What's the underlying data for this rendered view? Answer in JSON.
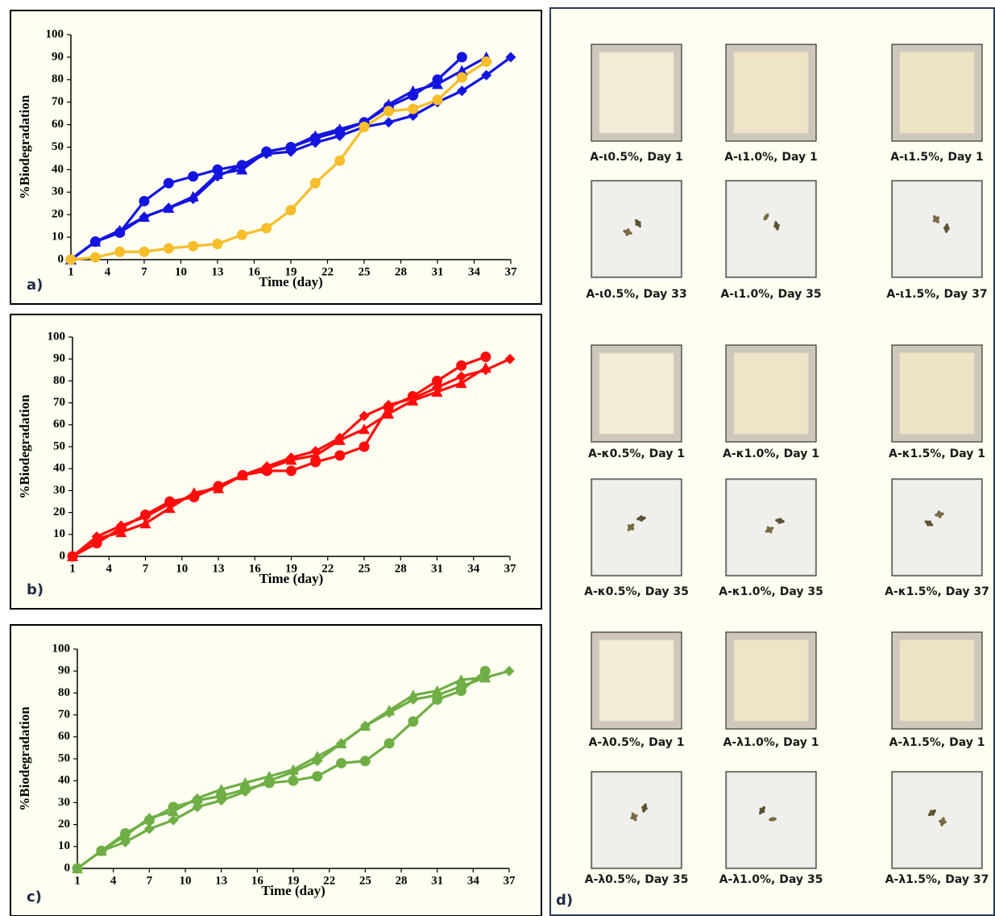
{
  "chart_data": [
    {
      "type": "line",
      "panel_label": "a)",
      "x_label": "Time (day)",
      "y_label": "%Biodegradation",
      "x": [
        1,
        3,
        5,
        7,
        9,
        11,
        13,
        15,
        17,
        19,
        21,
        23,
        25,
        27,
        29,
        31,
        33,
        35,
        37
      ],
      "xlim": [
        1,
        37
      ],
      "xticks": [
        1,
        4,
        7,
        10,
        13,
        16,
        19,
        22,
        25,
        28,
        31,
        34,
        37
      ],
      "ylim": [
        0,
        100
      ],
      "yticks": [
        0,
        10,
        20,
        30,
        40,
        50,
        60,
        70,
        80,
        90,
        100
      ],
      "series": [
        {
          "color": "#1414e0",
          "marker": "circle",
          "values": [
            0,
            8,
            12,
            26,
            34,
            37,
            40,
            42,
            48,
            50,
            54,
            57,
            61,
            68,
            73,
            80,
            90,
            null,
            null
          ]
        },
        {
          "color": "#1414e0",
          "marker": "triangle",
          "values": [
            0,
            8,
            13,
            19,
            23,
            28,
            38,
            40,
            48,
            50,
            55,
            58,
            61,
            69,
            75,
            78,
            84,
            90,
            null
          ]
        },
        {
          "color": "#1414e0",
          "marker": "diamond",
          "values": [
            0,
            8,
            12,
            19,
            23,
            27,
            37,
            42,
            47,
            48,
            52,
            55,
            59,
            61,
            64,
            70,
            75,
            82,
            90
          ]
        },
        {
          "color": "#f7bd2a",
          "marker": "circle",
          "values": [
            0,
            1,
            3.5,
            3.5,
            5,
            6,
            7,
            11,
            14,
            22,
            34,
            44,
            59,
            66,
            67,
            71,
            81,
            88,
            null
          ]
        }
      ]
    },
    {
      "type": "line",
      "panel_label": "b)",
      "x_label": "Time (day)",
      "y_label": "%Biodegradation",
      "x": [
        1,
        3,
        5,
        7,
        9,
        11,
        13,
        15,
        17,
        19,
        21,
        23,
        25,
        27,
        29,
        31,
        33,
        35,
        37
      ],
      "xlim": [
        1,
        37
      ],
      "xticks": [
        1,
        4,
        7,
        10,
        13,
        16,
        19,
        22,
        25,
        28,
        31,
        34,
        37
      ],
      "ylim": [
        0,
        100
      ],
      "yticks": [
        0,
        10,
        20,
        30,
        40,
        50,
        60,
        70,
        80,
        90,
        100
      ],
      "series": [
        {
          "color": "#ff0d0d",
          "marker": "circle",
          "values": [
            0,
            6,
            13,
            19,
            25,
            27,
            32,
            37,
            39,
            39,
            43,
            46,
            50,
            68,
            73,
            80,
            87,
            91,
            null
          ]
        },
        {
          "color": "#ff0d0d",
          "marker": "triangle",
          "values": [
            0,
            8,
            11,
            15,
            22,
            29,
            31,
            37,
            40,
            44,
            46,
            53,
            58,
            65,
            71,
            75,
            79,
            86,
            null
          ]
        },
        {
          "color": "#ff0d0d",
          "marker": "diamond",
          "values": [
            0,
            9,
            14,
            18,
            24,
            28,
            32,
            37,
            41,
            45,
            48,
            54,
            64,
            69,
            72,
            77,
            82,
            85,
            90
          ]
        }
      ]
    },
    {
      "type": "line",
      "panel_label": "c)",
      "x_label": "Time (day)",
      "y_label": "%Biodegradation",
      "x": [
        1,
        3,
        5,
        7,
        9,
        11,
        13,
        15,
        17,
        19,
        21,
        23,
        25,
        27,
        29,
        31,
        33,
        35,
        37
      ],
      "xlim": [
        1,
        37
      ],
      "xticks": [
        1,
        4,
        7,
        10,
        13,
        16,
        19,
        22,
        25,
        28,
        31,
        34,
        37
      ],
      "ylim": [
        0,
        100
      ],
      "yticks": [
        0,
        10,
        20,
        30,
        40,
        50,
        60,
        70,
        80,
        90,
        100
      ],
      "series": [
        {
          "color": "#6fae45",
          "marker": "circle",
          "values": [
            0,
            8,
            16,
            22,
            28,
            31,
            33,
            36,
            39,
            40,
            42,
            48,
            49,
            57,
            67,
            77,
            81,
            90,
            null
          ]
        },
        {
          "color": "#6fae45",
          "marker": "triangle",
          "values": [
            0,
            8,
            15,
            23,
            26,
            32,
            36,
            39,
            42,
            45,
            51,
            57,
            65,
            72,
            79,
            81,
            86,
            87,
            null
          ]
        },
        {
          "color": "#6fae45",
          "marker": "diamond",
          "values": [
            0,
            8,
            12,
            18,
            22,
            28,
            31,
            35,
            40,
            44,
            49,
            57,
            65,
            71,
            77,
            79,
            83,
            87,
            90
          ]
        }
      ]
    }
  ],
  "photos": {
    "panel_label": "d)",
    "labels": [
      "A-ι0.5%, Day 1",
      "A-ι1.0%, Day 1",
      "A-ι1.5%, Day 1",
      "A-ι0.5%, Day 33",
      "A-ι1.0%, Day 35",
      "A-ι1.5%, Day 37",
      "A-κ0.5%, Day 1",
      "A-κ1.0%, Day 1",
      "A-κ1.5%, Day 1",
      "A-κ0.5%, Day 35",
      "A-κ1.0%, Day 35",
      "A-κ1.5%, Day 37",
      "A-λ0.5%, Day 1",
      "A-λ1.0%, Day 1",
      "A-λ1.5%, Day 1",
      "A-λ0.5%, Day 35",
      "A-λ1.0%, Day 35",
      "A-λ1.5%, Day 37"
    ]
  }
}
